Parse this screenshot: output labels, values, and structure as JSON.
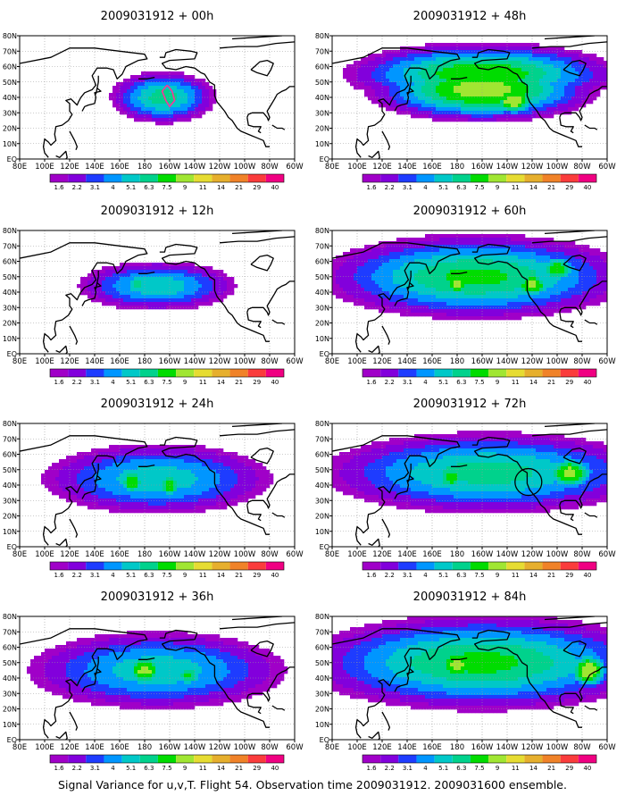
{
  "caption": "Signal Variance for u,v,T. Flight 54. Observation time 2009031912. 2009031600 ensemble.",
  "legend_bins": [
    "1.6",
    "2.2",
    "3.1",
    "4",
    "5.1",
    "6.3",
    "7.5",
    "9",
    "11",
    "14",
    "21",
    "29",
    "40"
  ],
  "colors": {
    "bins": [
      "#a000c8",
      "#8200dc",
      "#1e3cff",
      "#0096ff",
      "#00c8c8",
      "#00d28c",
      "#00dc00",
      "#a0e632",
      "#e6dc32",
      "#e6af2d",
      "#f08228",
      "#fa3c3c",
      "#f00082"
    ],
    "land": "#000000",
    "grid": "#999999",
    "flight_track": "#ff3399"
  },
  "x_ticks": [
    "80E",
    "100E",
    "120E",
    "140E",
    "160E",
    "180",
    "160W",
    "140W",
    "120W",
    "100W",
    "80W",
    "60W"
  ],
  "y_ticks": [
    "EQ",
    "10N",
    "20N",
    "30N",
    "40N",
    "50N",
    "60N",
    "70N",
    "80N"
  ],
  "panels": [
    {
      "title": "2009031912 + 00h"
    },
    {
      "title": "2009031912 + 48h"
    },
    {
      "title": "2009031912 + 12h"
    },
    {
      "title": "2009031912 + 60h"
    },
    {
      "title": "2009031912 + 24h"
    },
    {
      "title": "2009031912 + 72h"
    },
    {
      "title": "2009031912 + 36h"
    },
    {
      "title": "2009031912 + 84h"
    }
  ],
  "chart_data": {
    "type": "heatmap",
    "title": "Signal Variance for u,v,T. Flight 54. Observation time 2009031912. 2009031600 ensemble.",
    "forecast_hours": [
      0,
      48,
      12,
      60,
      24,
      72,
      36,
      84
    ],
    "lon_range": [
      80,
      300
    ],
    "lat_range": [
      0,
      80
    ],
    "contour_levels": [
      1.6,
      2.2,
      3.1,
      4,
      5.1,
      6.3,
      7.5,
      9,
      11,
      14,
      21,
      29,
      40
    ],
    "grid": true,
    "fields": [
      {
        "lead": "00h",
        "blobs": [
          {
            "lon": 195,
            "lat": 40,
            "rx": 35,
            "ry": 14,
            "peak": 7
          },
          {
            "lon": 215,
            "lat": 44,
            "rx": 15,
            "ry": 8,
            "peak": 4
          },
          {
            "lon": 195,
            "lat": 55,
            "rx": 12,
            "ry": 6,
            "peak": 2
          }
        ]
      },
      {
        "lead": "48h",
        "blobs": [
          {
            "lon": 200,
            "lat": 55,
            "rx": 85,
            "ry": 16,
            "peak": 9
          },
          {
            "lon": 200,
            "lat": 45,
            "rx": 70,
            "ry": 16,
            "peak": 10
          },
          {
            "lon": 225,
            "lat": 38,
            "rx": 15,
            "ry": 8,
            "peak": 11
          },
          {
            "lon": 260,
            "lat": 35,
            "rx": 20,
            "ry": 8,
            "peak": 3
          }
        ]
      },
      {
        "lead": "12h",
        "blobs": [
          {
            "lon": 190,
            "lat": 44,
            "rx": 55,
            "ry": 14,
            "peak": 6
          },
          {
            "lon": 175,
            "lat": 45,
            "rx": 10,
            "ry": 8,
            "peak": 7
          },
          {
            "lon": 205,
            "lat": 42,
            "rx": 12,
            "ry": 7,
            "peak": 6
          }
        ]
      },
      {
        "lead": "60h",
        "blobs": [
          {
            "lon": 195,
            "lat": 50,
            "rx": 100,
            "ry": 22,
            "peak": 8
          },
          {
            "lon": 180,
            "lat": 45,
            "rx": 12,
            "ry": 8,
            "peak": 10
          },
          {
            "lon": 240,
            "lat": 45,
            "rx": 14,
            "ry": 8,
            "peak": 10
          },
          {
            "lon": 260,
            "lat": 55,
            "rx": 14,
            "ry": 8,
            "peak": 9
          }
        ]
      },
      {
        "lead": "24h",
        "blobs": [
          {
            "lon": 190,
            "lat": 44,
            "rx": 80,
            "ry": 20,
            "peak": 6
          },
          {
            "lon": 170,
            "lat": 42,
            "rx": 10,
            "ry": 9,
            "peak": 9
          },
          {
            "lon": 200,
            "lat": 40,
            "rx": 10,
            "ry": 8,
            "peak": 9
          }
        ]
      },
      {
        "lead": "72h",
        "blobs": [
          {
            "lon": 205,
            "lat": 48,
            "rx": 110,
            "ry": 22,
            "peak": 7
          },
          {
            "lon": 175,
            "lat": 45,
            "rx": 12,
            "ry": 8,
            "peak": 9
          },
          {
            "lon": 270,
            "lat": 48,
            "rx": 18,
            "ry": 10,
            "peak": 10
          }
        ]
      },
      {
        "lead": "36h",
        "blobs": [
          {
            "lon": 190,
            "lat": 45,
            "rx": 90,
            "ry": 22,
            "peak": 6
          },
          {
            "lon": 180,
            "lat": 45,
            "rx": 14,
            "ry": 10,
            "peak": 10
          },
          {
            "lon": 215,
            "lat": 42,
            "rx": 12,
            "ry": 8,
            "peak": 8
          }
        ]
      },
      {
        "lead": "84h",
        "blobs": [
          {
            "lon": 200,
            "lat": 50,
            "rx": 115,
            "ry": 25,
            "peak": 8
          },
          {
            "lon": 180,
            "lat": 48,
            "rx": 14,
            "ry": 10,
            "peak": 10
          },
          {
            "lon": 285,
            "lat": 45,
            "rx": 14,
            "ry": 10,
            "peak": 11
          }
        ]
      }
    ]
  }
}
